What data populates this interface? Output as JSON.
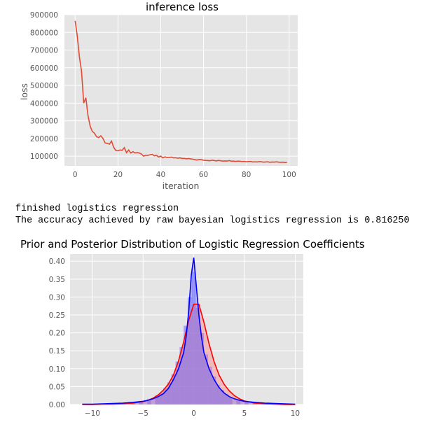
{
  "output": {
    "line1": "finished logistics regression",
    "line2": "The accuracy achieved by raw bayesian logistics regression is 0.816250"
  },
  "colors": {
    "panel": "#e5e5e5",
    "grid": "#ffffff",
    "loss_line": "#e24a33",
    "prior": "#ff0000",
    "posterior": "#0000ff",
    "prior_fill": "#ff6a6a",
    "posterior_fill": "#7070ff"
  },
  "chart_data": [
    {
      "type": "line",
      "title": "inference loss",
      "xlabel": "iteration",
      "ylabel": "loss",
      "xlim": [
        -5,
        104
      ],
      "ylim": [
        45000,
        900000
      ],
      "xticks": [
        0,
        20,
        40,
        60,
        80,
        100
      ],
      "xtick_labels": [
        "0",
        "20",
        "40",
        "60",
        "80",
        "100"
      ],
      "yticks": [
        100000,
        200000,
        300000,
        400000,
        500000,
        600000,
        700000,
        800000,
        900000
      ],
      "ytick_labels": [
        "100000",
        "200000",
        "300000",
        "400000",
        "500000",
        "600000",
        "700000",
        "800000",
        "900000"
      ],
      "grid": true,
      "series": [
        {
          "x": [
            0,
            1,
            2,
            3,
            4,
            5,
            6,
            7,
            8,
            9,
            10,
            11,
            12,
            13,
            14,
            15,
            16,
            17,
            18,
            19,
            20,
            21,
            22,
            23,
            24,
            25,
            26,
            27,
            28,
            29,
            30,
            31,
            32,
            33,
            34,
            35,
            36,
            37,
            38,
            39,
            40,
            41,
            42,
            43,
            44,
            45,
            46,
            47,
            48,
            49,
            50,
            51,
            52,
            53,
            54,
            55,
            56,
            57,
            58,
            59,
            60,
            61,
            62,
            63,
            64,
            65,
            66,
            67,
            68,
            69,
            70,
            71,
            72,
            73,
            74,
            75,
            76,
            77,
            78,
            79,
            80,
            81,
            82,
            83,
            84,
            85,
            86,
            87,
            88,
            89,
            90,
            91,
            92,
            93,
            94,
            95,
            96,
            97,
            98,
            99
          ],
          "values": [
            865000,
            780000,
            660000,
            580000,
            400000,
            430000,
            330000,
            270000,
            240000,
            230000,
            210000,
            205000,
            215000,
            200000,
            175000,
            172000,
            168000,
            185000,
            150000,
            132000,
            130000,
            135000,
            133000,
            148000,
            120000,
            135000,
            118000,
            125000,
            118000,
            120000,
            118000,
            112000,
            100000,
            105000,
            104000,
            108000,
            110000,
            102000,
            105000,
            95000,
            100000,
            90000,
            96000,
            92000,
            93000,
            95000,
            90000,
            91000,
            88000,
            90000,
            87000,
            87000,
            85000,
            86000,
            84000,
            83000,
            80000,
            78000,
            82000,
            80000,
            77000,
            76000,
            75000,
            74000,
            77000,
            75000,
            73000,
            76000,
            74000,
            72000,
            73000,
            72000,
            75000,
            71000,
            72000,
            70000,
            72000,
            71000,
            69000,
            70000,
            68000,
            69000,
            70000,
            67000,
            68000,
            67000,
            69000,
            68000,
            66000,
            67000,
            68000,
            65000,
            67000,
            66000,
            68000,
            66000,
            65000,
            66000,
            64000,
            65000
          ]
        }
      ]
    },
    {
      "type": "area",
      "title": "Prior and Posterior Distribution of Logistic Regression Coefficients",
      "xlabel": "",
      "ylabel": "",
      "xlim": [
        -12.2,
        10.8
      ],
      "ylim": [
        0,
        0.42
      ],
      "xticks": [
        -10,
        -5,
        0,
        5,
        10
      ],
      "xtick_labels": [
        "−10",
        "−5",
        "0",
        "5",
        "10"
      ],
      "yticks": [
        0,
        0.05,
        0.1,
        0.15,
        0.2,
        0.25,
        0.3,
        0.35,
        0.4
      ],
      "ytick_labels": [
        "0.00",
        "0.05",
        "0.10",
        "0.15",
        "0.20",
        "0.25",
        "0.30",
        "0.35",
        "0.40"
      ],
      "grid": true,
      "series": [
        {
          "x": [
            -11,
            -10,
            -9,
            -8,
            -7,
            -6,
            -5,
            -4.5,
            -4,
            -3.5,
            -3,
            -2.5,
            -2,
            -1.5,
            -1,
            -0.5,
            0,
            0.5,
            1,
            1.5,
            2,
            2.5,
            3,
            3.5,
            4,
            4.5,
            5,
            6,
            7,
            8,
            9,
            10
          ],
          "values": [
            0,
            0,
            0.001,
            0.001,
            0.002,
            0.004,
            0.008,
            0.012,
            0.018,
            0.027,
            0.04,
            0.057,
            0.083,
            0.122,
            0.175,
            0.235,
            0.28,
            0.28,
            0.23,
            0.17,
            0.12,
            0.082,
            0.056,
            0.038,
            0.025,
            0.016,
            0.01,
            0.004,
            0.002,
            0.001,
            0,
            0
          ]
        },
        {
          "x": [
            -11,
            -10,
            -9,
            -8,
            -7,
            -6,
            -5,
            -4.5,
            -4,
            -3.5,
            -3,
            -2.5,
            -2,
            -1.5,
            -1,
            -0.75,
            -0.5,
            -0.25,
            0,
            0.25,
            0.5,
            0.75,
            1,
            1.5,
            2,
            2.5,
            3,
            3.5,
            4,
            4.5,
            5,
            6,
            7,
            8,
            9,
            10
          ],
          "values": [
            0.001,
            0.001,
            0.002,
            0.003,
            0.004,
            0.006,
            0.009,
            0.012,
            0.016,
            0.022,
            0.03,
            0.045,
            0.07,
            0.1,
            0.145,
            0.19,
            0.26,
            0.36,
            0.41,
            0.33,
            0.25,
            0.19,
            0.145,
            0.1,
            0.07,
            0.047,
            0.032,
            0.022,
            0.016,
            0.012,
            0.009,
            0.006,
            0.004,
            0.003,
            0.002,
            0.001
          ]
        }
      ],
      "histogram": {
        "bin_width": 0.4,
        "bins": [
          [
            -6,
            0.004
          ],
          [
            -5.2,
            0.01
          ],
          [
            -4.4,
            0.015
          ],
          [
            -3.6,
            0.025
          ],
          [
            -3.2,
            0.032
          ],
          [
            -2.8,
            0.045
          ],
          [
            -2.4,
            0.062
          ],
          [
            -2,
            0.085
          ],
          [
            -1.6,
            0.12
          ],
          [
            -1.2,
            0.16
          ],
          [
            -0.8,
            0.22
          ],
          [
            -0.4,
            0.3
          ],
          [
            0,
            0.37
          ],
          [
            0.4,
            0.27
          ],
          [
            0.8,
            0.2
          ],
          [
            1.2,
            0.14
          ],
          [
            1.6,
            0.105
          ],
          [
            2,
            0.078
          ],
          [
            2.4,
            0.054
          ],
          [
            2.8,
            0.04
          ],
          [
            3.2,
            0.029
          ],
          [
            3.6,
            0.02
          ],
          [
            4.4,
            0.013
          ],
          [
            5.2,
            0.008
          ],
          [
            6,
            0.004
          ]
        ]
      }
    }
  ]
}
